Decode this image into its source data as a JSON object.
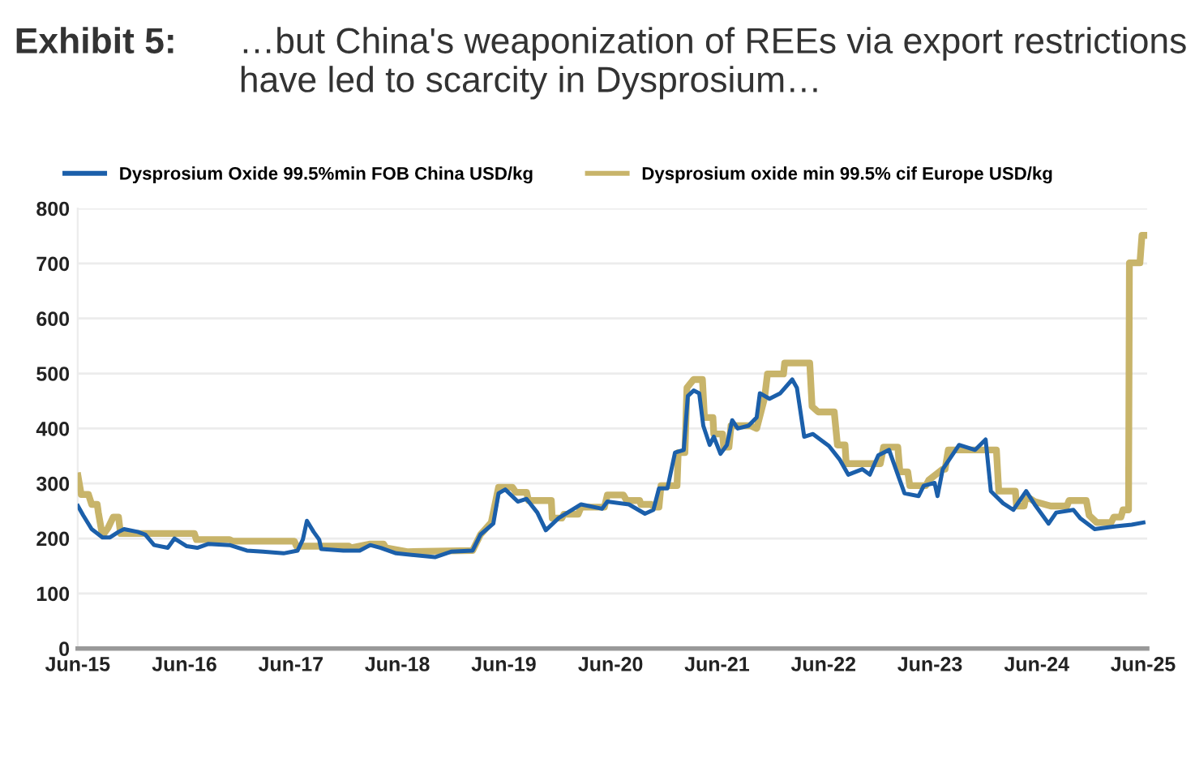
{
  "chart_data": {
    "type": "line",
    "title": "Exhibit 5:",
    "subtitle": "…but China's weaponization of REEs via export restrictions have led to scarcity in Dysprosium…",
    "xlim": [
      "2015-06-01",
      "2025-06-15"
    ],
    "xticks": [
      {
        "value": "2015-06-01",
        "label": "Jun-15"
      },
      {
        "value": "2016-06-01",
        "label": "Jun-16"
      },
      {
        "value": "2017-06-01",
        "label": "Jun-17"
      },
      {
        "value": "2018-06-01",
        "label": "Jun-18"
      },
      {
        "value": "2019-06-01",
        "label": "Jun-19"
      },
      {
        "value": "2020-06-01",
        "label": "Jun-20"
      },
      {
        "value": "2021-06-01",
        "label": "Jun-21"
      },
      {
        "value": "2022-06-01",
        "label": "Jun-22"
      },
      {
        "value": "2023-06-01",
        "label": "Jun-23"
      },
      {
        "value": "2024-06-01",
        "label": "Jun-24"
      },
      {
        "value": "2025-06-01",
        "label": "Jun-25"
      }
    ],
    "ylim": [
      0,
      800
    ],
    "yticks": [
      0,
      100,
      200,
      300,
      400,
      500,
      600,
      700,
      800
    ],
    "grid": "y",
    "legend": "top",
    "marker": "none",
    "line_style": "solid",
    "series": [
      {
        "name": "Dysprosium Oxide 99.5%min FOB China USD/kg",
        "color": "#1b5faa",
        "x": [
          "2015-06-02",
          "2015-06-20",
          "2015-07-19",
          "2015-08-25",
          "2015-09-20",
          "2015-10-19",
          "2015-11-07",
          "2015-12-24",
          "2016-01-19",
          "2016-02-18",
          "2016-04-05",
          "2016-04-28",
          "2016-06-09",
          "2016-07-15",
          "2016-08-21",
          "2016-11-03",
          "2017-01-01",
          "2017-02-25",
          "2017-05-07",
          "2017-06-24",
          "2017-07-12",
          "2017-07-26",
          "2017-08-18",
          "2017-09-06",
          "2017-09-13",
          "2017-11-28",
          "2018-01-23",
          "2018-02-28",
          "2018-04-05",
          "2018-05-28",
          "2018-10-08",
          "2018-12-02",
          "2019-02-14",
          "2019-03-13",
          "2019-04-26",
          "2019-05-14",
          "2019-06-06",
          "2019-07-19",
          "2019-08-18",
          "2019-09-24",
          "2019-10-23",
          "2019-12-06",
          "2020-02-21",
          "2020-05-03",
          "2020-05-21",
          "2020-08-03",
          "2020-09-27",
          "2020-10-26",
          "2020-11-14",
          "2020-12-13",
          "2021-01-08",
          "2021-02-07",
          "2021-02-21",
          "2021-03-13",
          "2021-04-01",
          "2021-04-15",
          "2021-05-07",
          "2021-05-21",
          "2021-06-13",
          "2021-07-05",
          "2021-07-23",
          "2021-08-11",
          "2021-09-17",
          "2021-10-15",
          "2021-10-26",
          "2021-11-28",
          "2022-01-04",
          "2022-02-14",
          "2022-03-02",
          "2022-03-27",
          "2022-04-26",
          "2022-06-20",
          "2022-07-26",
          "2022-08-25",
          "2022-10-12",
          "2022-11-07",
          "2022-12-06",
          "2023-01-12",
          "2023-02-11",
          "2023-03-06",
          "2023-04-23",
          "2023-05-11",
          "2023-06-17",
          "2023-06-27",
          "2023-07-15",
          "2023-09-09",
          "2023-11-03",
          "2023-12-09",
          "2023-12-27",
          "2024-02-07",
          "2024-03-13",
          "2024-04-26",
          "2024-05-25",
          "2024-07-12",
          "2024-08-07",
          "2024-10-05",
          "2024-10-28",
          "2024-12-17",
          "2025-02-28",
          "2025-04-23",
          "2025-06-02"
        ],
        "values": [
          259,
          242,
          217,
          202,
          202,
          212,
          217,
          212,
          207,
          188,
          183,
          200,
          186,
          183,
          190,
          188,
          178,
          176,
          173,
          178,
          198,
          232,
          212,
          198,
          181,
          178,
          178,
          188,
          183,
          173,
          166,
          176,
          178,
          207,
          227,
          282,
          289,
          267,
          272,
          247,
          215,
          237,
          262,
          254,
          267,
          262,
          245,
          252,
          291,
          291,
          356,
          361,
          459,
          469,
          464,
          405,
          370,
          385,
          354,
          370,
          415,
          400,
          405,
          420,
          464,
          454,
          464,
          489,
          474,
          385,
          390,
          368,
          344,
          316,
          326,
          316,
          351,
          361,
          316,
          282,
          277,
          296,
          301,
          277,
          326,
          370,
          361,
          380,
          286,
          264,
          252,
          286,
          262,
          227,
          247,
          252,
          237,
          217,
          222,
          225,
          229
        ]
      },
      {
        "name": "Dysprosium oxide min 99.5% cif Europe USD/kg",
        "color": "#c8b46a",
        "x": [
          "2015-06-02",
          "2015-06-13",
          "2015-07-08",
          "2015-07-19",
          "2015-08-07",
          "2015-08-11",
          "2015-08-25",
          "2015-09-13",
          "2015-10-01",
          "2015-10-19",
          "2015-10-26",
          "2016-07-05",
          "2016-07-12",
          "2016-11-03",
          "2016-11-14",
          "2017-06-13",
          "2017-06-20",
          "2017-12-17",
          "2017-12-24",
          "2018-02-28",
          "2018-04-15",
          "2018-04-23",
          "2018-07-05",
          "2019-02-14",
          "2019-03-13",
          "2019-04-19",
          "2019-05-14",
          "2019-07-01",
          "2019-07-12",
          "2019-08-18",
          "2019-08-25",
          "2019-11-11",
          "2019-11-14",
          "2019-12-17",
          "2019-12-24",
          "2020-02-11",
          "2020-02-21",
          "2020-05-11",
          "2020-05-21",
          "2020-07-15",
          "2020-07-26",
          "2020-09-09",
          "2020-09-13",
          "2020-10-19",
          "2020-10-26",
          "2020-11-14",
          "2020-11-21",
          "2021-01-15",
          "2021-01-19",
          "2021-02-11",
          "2021-02-18",
          "2021-03-13",
          "2021-04-12",
          "2021-04-19",
          "2021-05-18",
          "2021-05-21",
          "2021-06-20",
          "2021-06-24",
          "2021-07-12",
          "2021-07-19",
          "2021-09-24",
          "2021-10-15",
          "2021-11-11",
          "2021-11-21",
          "2022-01-15",
          "2022-01-19",
          "2022-04-15",
          "2022-04-23",
          "2022-05-14",
          "2022-07-08",
          "2022-07-19",
          "2022-08-14",
          "2022-08-18",
          "2022-12-13",
          "2022-12-24",
          "2023-02-11",
          "2023-02-18",
          "2023-03-17",
          "2023-03-24",
          "2023-05-18",
          "2023-05-28",
          "2023-07-15",
          "2023-07-23",
          "2023-08-03",
          "2024-01-15",
          "2024-01-23",
          "2024-03-20",
          "2024-03-24",
          "2024-04-19",
          "2024-04-26",
          "2024-05-25",
          "2024-07-19",
          "2024-09-13",
          "2024-09-20",
          "2024-11-18",
          "2024-11-28",
          "2024-12-24",
          "2025-02-11",
          "2025-02-21",
          "2025-03-17",
          "2025-03-24",
          "2025-04-12",
          "2025-04-15",
          "2025-05-21",
          "2025-05-28",
          "2025-06-09"
        ],
        "values": [
          314,
          280,
          280,
          262,
          262,
          247,
          205,
          219,
          239,
          239,
          209,
          209,
          198,
          198,
          195,
          195,
          186,
          186,
          183,
          190,
          190,
          183,
          176,
          178,
          207,
          229,
          293,
          293,
          284,
          284,
          269,
          269,
          237,
          237,
          244,
          244,
          257,
          257,
          279,
          279,
          269,
          269,
          262,
          262,
          257,
          257,
          296,
          296,
          356,
          356,
          474,
          489,
          489,
          420,
          420,
          390,
          390,
          366,
          366,
          405,
          405,
          400,
          455,
          499,
          499,
          519,
          519,
          440,
          430,
          430,
          370,
          370,
          336,
          336,
          366,
          366,
          321,
          321,
          296,
          296,
          306,
          326,
          326,
          361,
          361,
          286,
          286,
          259,
          259,
          277,
          267,
          259,
          259,
          269,
          269,
          242,
          229,
          229,
          239,
          239,
          252,
          252,
          701,
          701,
          751,
          751
        ]
      }
    ]
  }
}
